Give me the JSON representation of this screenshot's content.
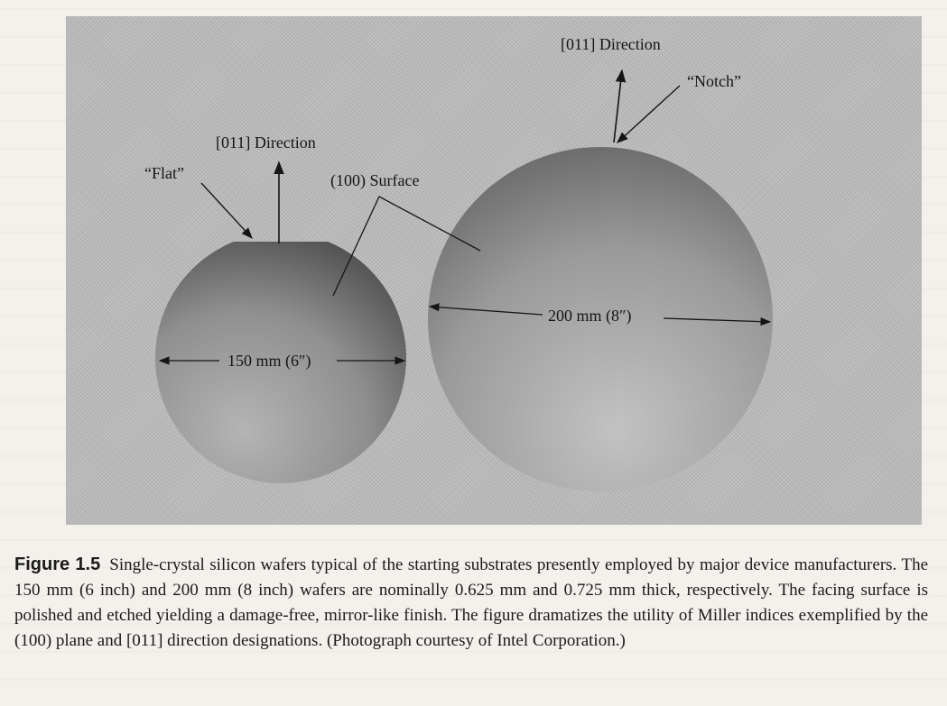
{
  "figure": {
    "labels": {
      "small_direction": "[011] Direction",
      "flat": "“Flat”",
      "surface": "(100) Surface",
      "large_direction": "[011] Direction",
      "notch": "“Notch”",
      "small_diameter": "150 mm (6″)",
      "large_diameter": "200 mm (8″)"
    }
  },
  "caption": {
    "figure_number": "Figure 1.5",
    "text": "Single-crystal silicon wafers typical of the starting substrates presently employed by major device manufacturers. The 150 mm (6 inch) and 200 mm (8 inch) wafers are nominally 0.625 mm and 0.725 mm thick, respectively. The facing surface is polished and etched yielding a damage-free, mirror-like finish. The figure dramatizes the utility of Miller indices exemplified by the (100) plane and [011] direction designations. (Photograph courtesy of Intel Corporation.)"
  }
}
